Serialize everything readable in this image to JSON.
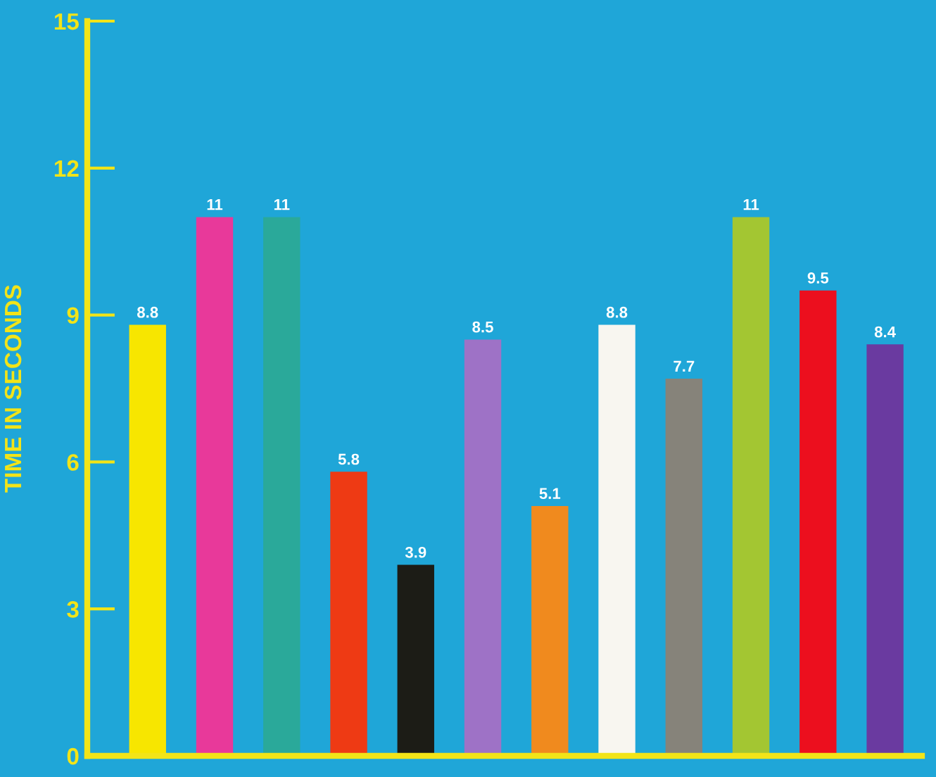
{
  "chart_data": {
    "type": "bar",
    "ylabel": "TIME IN SECONDS",
    "categories": [
      null,
      null,
      null,
      null,
      null,
      null,
      null,
      null,
      null,
      null,
      null,
      null
    ],
    "values": [
      8.8,
      11,
      11,
      5.8,
      3.9,
      8.5,
      5.1,
      8.8,
      7.7,
      11,
      9.5,
      8.4
    ],
    "colors": [
      "#f7e600",
      "#e8399a",
      "#2aa99a",
      "#ee3a14",
      "#1c1c16",
      "#9e72c6",
      "#f08a1e",
      "#f8f6f0",
      "#86837a",
      "#a3c632",
      "#ec0f1e",
      "#6a3aa0"
    ],
    "ylim": [
      0,
      15
    ],
    "yticks": [
      0,
      3,
      6,
      9,
      12,
      15
    ],
    "data_labels": true,
    "grid": false,
    "legend": false
  }
}
